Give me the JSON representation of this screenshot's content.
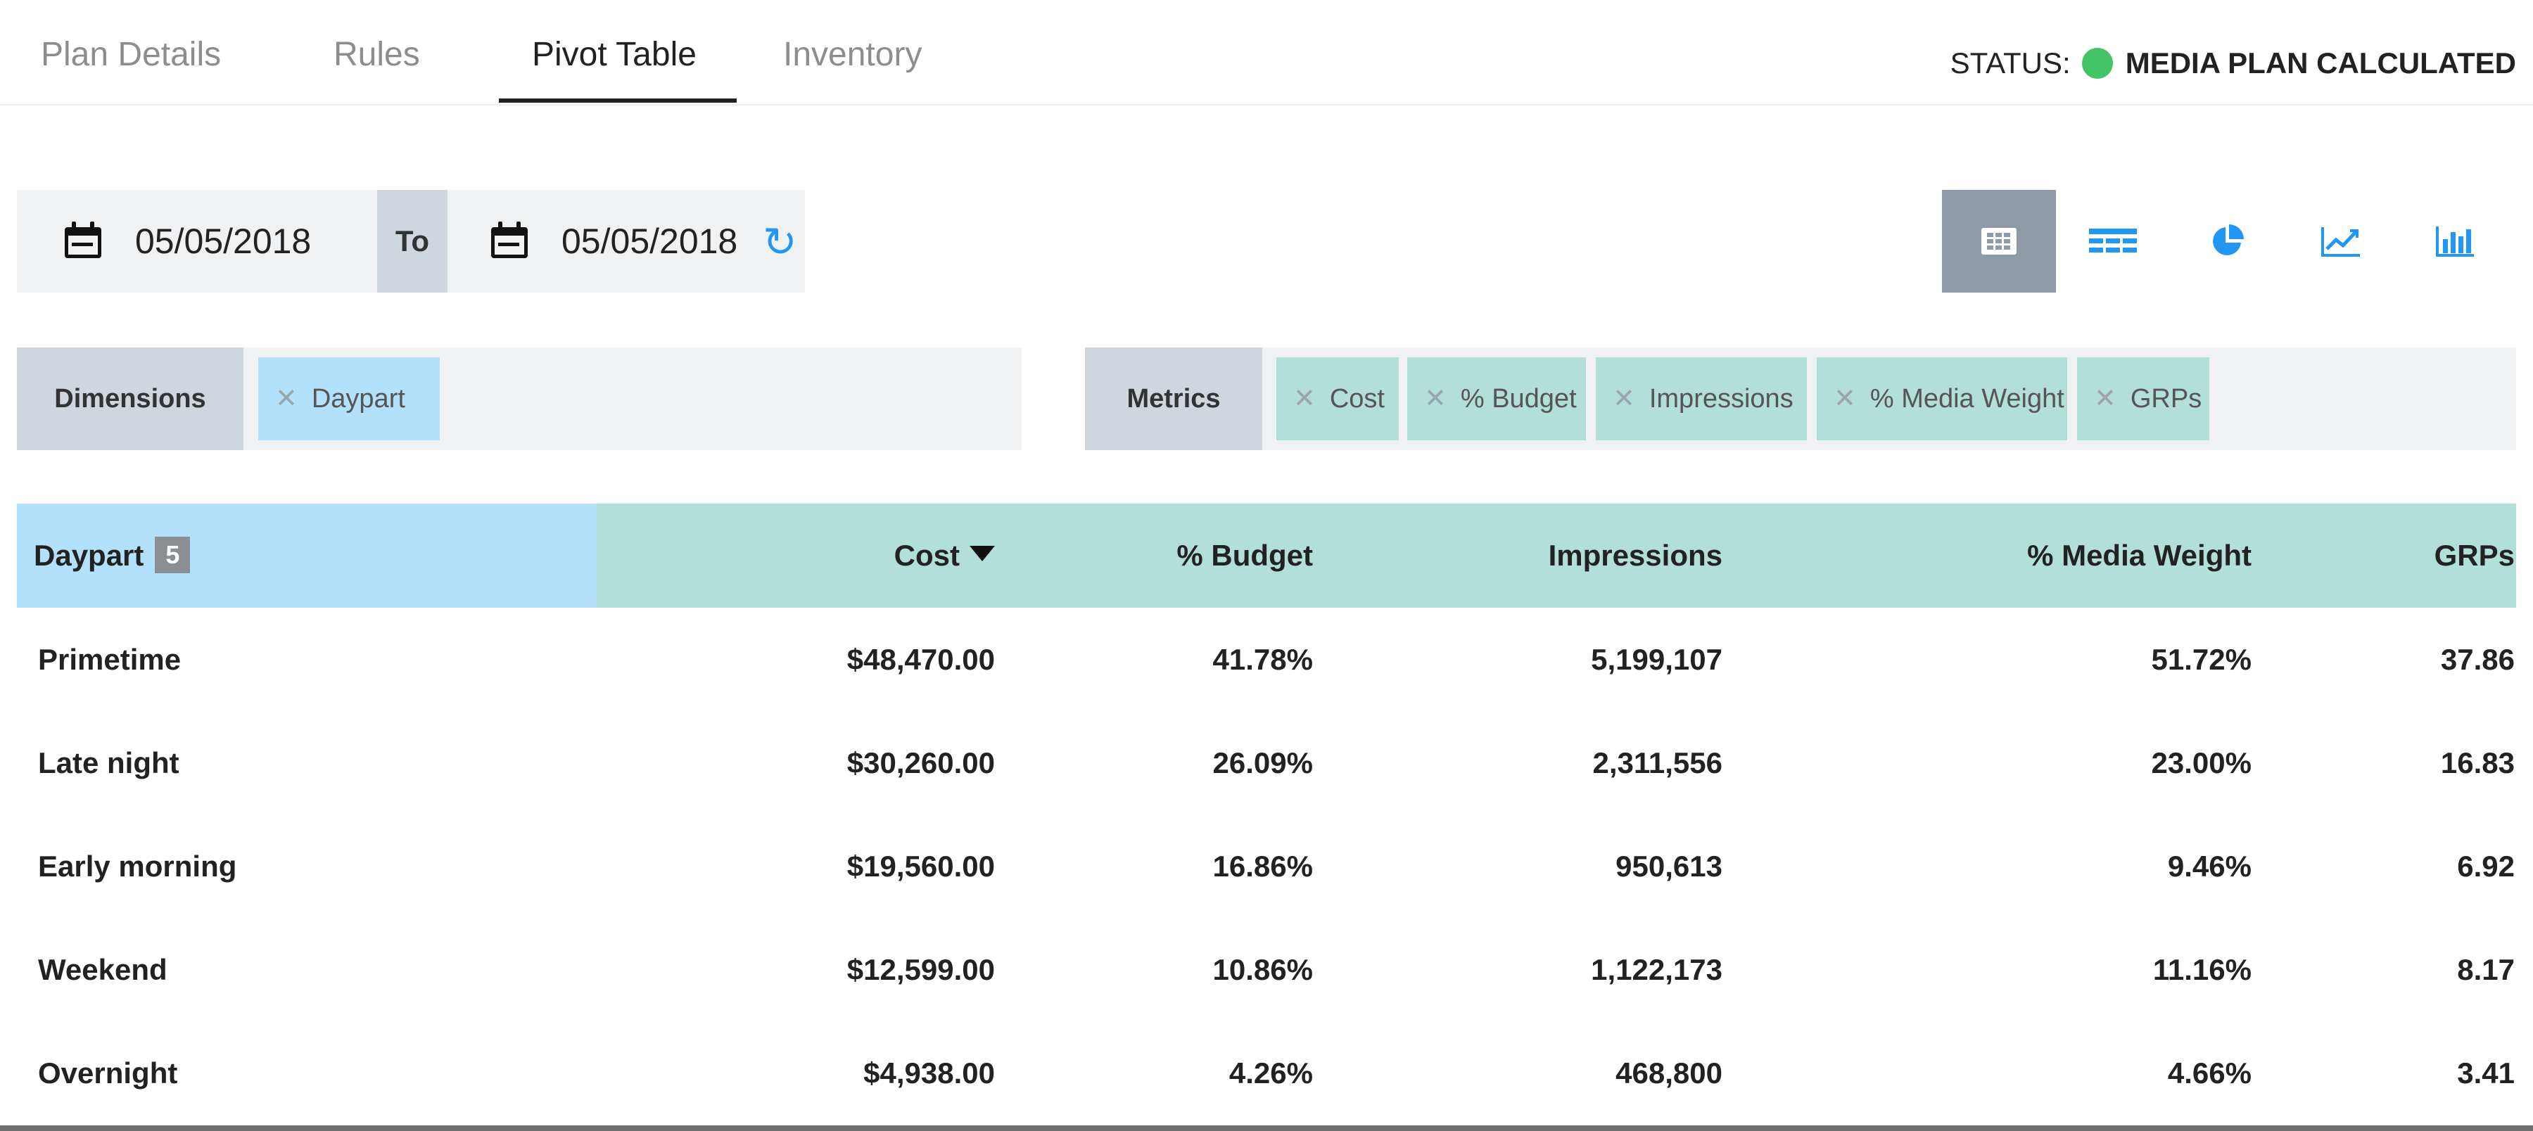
{
  "tabs": [
    {
      "label": "Plan Details"
    },
    {
      "label": "Rules"
    },
    {
      "label": "Pivot Table",
      "active": true
    },
    {
      "label": "Inventory"
    }
  ],
  "status": {
    "label": "STATUS:",
    "value": "MEDIA PLAN CALCULATED",
    "color": "#43c466"
  },
  "date_range": {
    "start": "05/05/2018",
    "separator": "To",
    "end": "05/05/2018",
    "refresh_icon": "refresh-icon"
  },
  "view_buttons": [
    {
      "icon": "table-icon",
      "active": true
    },
    {
      "icon": "list-table-icon"
    },
    {
      "icon": "pie-chart-icon"
    },
    {
      "icon": "line-chart-icon"
    },
    {
      "icon": "bar-chart-icon"
    }
  ],
  "dimensions": {
    "label": "Dimensions",
    "chips": [
      "Daypart"
    ]
  },
  "metrics": {
    "label": "Metrics",
    "chips": [
      "Cost",
      "% Budget",
      "Impressions",
      "% Media Weight",
      "GRPs"
    ]
  },
  "table": {
    "dimension_header": "Daypart",
    "dimension_count": "5",
    "columns": [
      "Cost",
      "% Budget",
      "Impressions",
      "% Media Weight",
      "GRPs"
    ],
    "sorted_column": "Cost",
    "sort_direction": "descending",
    "rows": [
      {
        "daypart": "Primetime",
        "cost": "$48,470.00",
        "budget": "41.78%",
        "impressions": "5,199,107",
        "media_weight": "51.72%",
        "grps": "37.86"
      },
      {
        "daypart": "Late night",
        "cost": "$30,260.00",
        "budget": "26.09%",
        "impressions": "2,311,556",
        "media_weight": "23.00%",
        "grps": "16.83"
      },
      {
        "daypart": "Early morning",
        "cost": "$19,560.00",
        "budget": "16.86%",
        "impressions": "950,613",
        "media_weight": "9.46%",
        "grps": "6.92"
      },
      {
        "daypart": "Weekend",
        "cost": "$12,599.00",
        "budget": "10.86%",
        "impressions": "1,122,173",
        "media_weight": "11.16%",
        "grps": "8.17"
      },
      {
        "daypart": "Overnight",
        "cost": "$4,938.00",
        "budget": "4.26%",
        "impressions": "468,800",
        "media_weight": "4.66%",
        "grps": "3.41"
      }
    ]
  },
  "colors": {
    "accent_blue": "#2196f3",
    "dimension_chip": "#b3e0fb",
    "metric_chip": "#b2e0d8",
    "active_view": "#8e9ba6"
  }
}
